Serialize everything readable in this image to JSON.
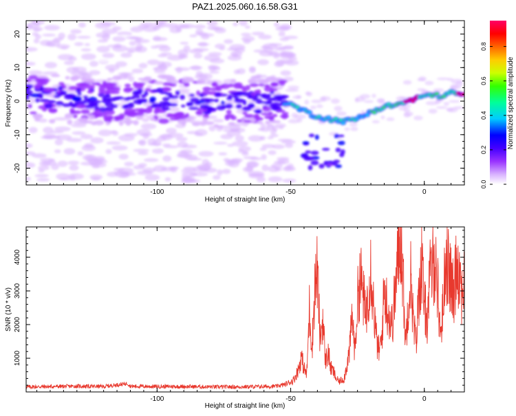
{
  "title": "PAZ1.2025.060.16.58.G31",
  "chart_data": [
    {
      "type": "heatmap",
      "xlabel": "Height of straight line (km)",
      "ylabel": "Frequency (Hz)",
      "xlim": [
        -149,
        15
      ],
      "ylim": [
        -25,
        24
      ],
      "xticks": [
        -100,
        -50,
        0
      ],
      "yticks": [
        -20,
        -10,
        0,
        10,
        20
      ],
      "colorbar": {
        "label": "Normalized spectral amplitude",
        "range": [
          0,
          0.95
        ],
        "ticks": [
          0.0,
          0.2,
          0.4,
          0.6,
          0.8
        ],
        "tick_labels": [
          "0.0",
          "0.2",
          "0.4",
          "0.6",
          "0.8"
        ],
        "colormap": [
          "#ffffff",
          "#d9b3ff",
          "#9933ff",
          "#4400ff",
          "#0000ff",
          "#00ccff",
          "#00ff99",
          "#33ff00",
          "#ccff00",
          "#ffcc00",
          "#ff6600",
          "#ff0000",
          "#ff0066"
        ]
      },
      "ridge": [
        {
          "x": -149,
          "f": 1.5
        },
        {
          "x": -140,
          "f": 1.0
        },
        {
          "x": -130,
          "f": 0.5
        },
        {
          "x": -120,
          "f": 0.0
        },
        {
          "x": -110,
          "f": 0.3
        },
        {
          "x": -100,
          "f": 0.5
        },
        {
          "x": -90,
          "f": 0.0
        },
        {
          "x": -80,
          "f": -0.5
        },
        {
          "x": -70,
          "f": 0.0
        },
        {
          "x": -60,
          "f": 0.0
        },
        {
          "x": -55,
          "f": 0.5
        },
        {
          "x": -50,
          "f": -1.0
        },
        {
          "x": -46,
          "f": -2.5
        },
        {
          "x": -42,
          "f": -4.0
        },
        {
          "x": -38,
          "f": -5.0
        },
        {
          "x": -34,
          "f": -5.5
        },
        {
          "x": -30,
          "f": -6.0
        },
        {
          "x": -26,
          "f": -5.5
        },
        {
          "x": -22,
          "f": -4.0
        },
        {
          "x": -18,
          "f": -2.5
        },
        {
          "x": -14,
          "f": -1.5
        },
        {
          "x": -10,
          "f": -1.0
        },
        {
          "x": -6,
          "f": 0.0
        },
        {
          "x": -2,
          "f": 1.0
        },
        {
          "x": 2,
          "f": 2.0
        },
        {
          "x": 6,
          "f": 1.5
        },
        {
          "x": 10,
          "f": 2.5
        },
        {
          "x": 15,
          "f": 2.0
        }
      ],
      "notes": "Broad diffuse purple spread from -149 to -55 km (-25 to +25 Hz); compact bright ridge from -50 to 15 km with red/yellow peaks near -5 km and 10 km; secondary branch near -45 to -30 km at -10 to -20 Hz."
    },
    {
      "type": "line",
      "xlabel": "Height of straight line (km)",
      "ylabel": "SNR (10 * v/v)",
      "xlim": [
        -149,
        15
      ],
      "ylim": [
        0,
        4900
      ],
      "xticks": [
        -100,
        -50,
        0
      ],
      "yticks": [
        1000,
        2000,
        3000,
        4000
      ],
      "color": "#e8392e",
      "points": [
        [
          -149,
          150
        ],
        [
          -140,
          160
        ],
        [
          -130,
          170
        ],
        [
          -120,
          160
        ],
        [
          -111,
          250
        ],
        [
          -110,
          170
        ],
        [
          -100,
          160
        ],
        [
          -90,
          160
        ],
        [
          -80,
          150
        ],
        [
          -70,
          150
        ],
        [
          -60,
          160
        ],
        [
          -55,
          170
        ],
        [
          -52,
          230
        ],
        [
          -50,
          300
        ],
        [
          -49,
          350
        ],
        [
          -48,
          500
        ],
        [
          -47,
          700
        ],
        [
          -46,
          1050
        ],
        [
          -45,
          700
        ],
        [
          -44,
          500
        ],
        [
          -43,
          2500
        ],
        [
          -42,
          1300
        ],
        [
          -41,
          3100
        ],
        [
          -40,
          3600
        ],
        [
          -39,
          1500
        ],
        [
          -38,
          2200
        ],
        [
          -37,
          900
        ],
        [
          -36,
          1200
        ],
        [
          -35,
          700
        ],
        [
          -34,
          600
        ],
        [
          -33,
          400
        ],
        [
          -32,
          300
        ],
        [
          -31,
          350
        ],
        [
          -30,
          400
        ],
        [
          -29,
          800
        ],
        [
          -28,
          1200
        ],
        [
          -27,
          2300
        ],
        [
          -26,
          1200
        ],
        [
          -25,
          2700
        ],
        [
          -24,
          3400
        ],
        [
          -23,
          3000
        ],
        [
          -22,
          2200
        ],
        [
          -21,
          3000
        ],
        [
          -20,
          3800
        ],
        [
          -19,
          2600
        ],
        [
          -18,
          1600
        ],
        [
          -17,
          1200
        ],
        [
          -16,
          1500
        ],
        [
          -15,
          3100
        ],
        [
          -14,
          2600
        ],
        [
          -13,
          2200
        ],
        [
          -12,
          2000
        ],
        [
          -11,
          2900
        ],
        [
          -10,
          3800
        ],
        [
          -9,
          4900
        ],
        [
          -8,
          3500
        ],
        [
          -7,
          1400
        ],
        [
          -6,
          2800
        ],
        [
          -5,
          3500
        ],
        [
          -4,
          1900
        ],
        [
          -3,
          1500
        ],
        [
          -2,
          3000
        ],
        [
          -1,
          3800
        ],
        [
          0,
          2600
        ],
        [
          1,
          2100
        ],
        [
          2,
          3300
        ],
        [
          3,
          3700
        ],
        [
          4,
          4000
        ],
        [
          5,
          3100
        ],
        [
          6,
          1700
        ],
        [
          7,
          2500
        ],
        [
          8,
          4100
        ],
        [
          9,
          3600
        ],
        [
          10,
          3300
        ],
        [
          11,
          2800
        ],
        [
          12,
          3900
        ],
        [
          13,
          3700
        ],
        [
          14,
          3000
        ],
        [
          15,
          3300
        ]
      ]
    }
  ]
}
